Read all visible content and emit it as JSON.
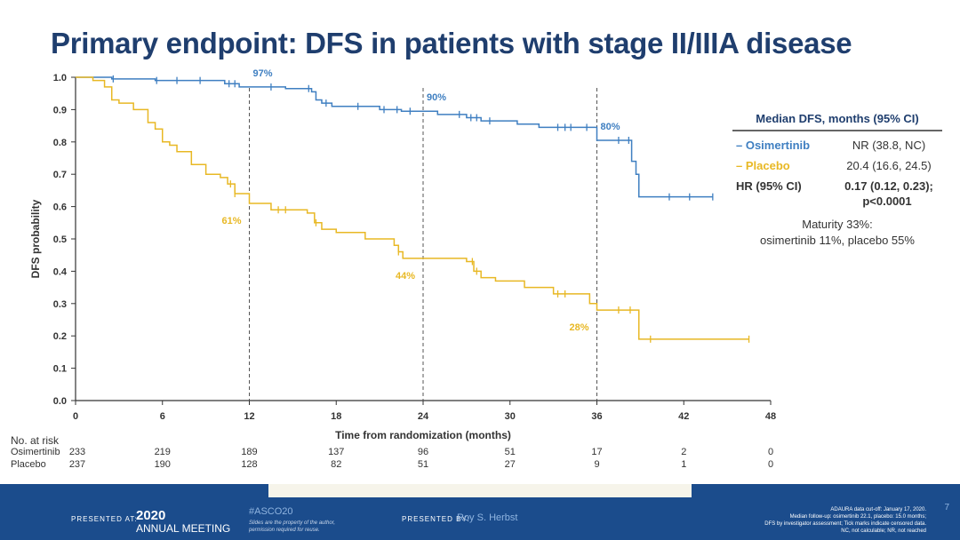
{
  "title": "Primary endpoint: DFS in patients with stage II/IIIA disease",
  "chart_data": {
    "type": "line",
    "subtype": "kaplan-meier",
    "xlabel": "Time from randomization (months)",
    "ylabel": "DFS probability",
    "xlim": [
      0,
      48
    ],
    "ylim": [
      0,
      1.0
    ],
    "xticks": [
      0,
      6,
      12,
      18,
      24,
      30,
      36,
      42,
      48
    ],
    "yticks": [
      "0.0",
      "0.1",
      "0.2",
      "0.3",
      "0.4",
      "0.5",
      "0.6",
      "0.7",
      "0.8",
      "0.9",
      "1.0"
    ],
    "series": [
      {
        "name": "Osimertinib",
        "color": "#3f7fc1",
        "points": [
          [
            0,
            1.0
          ],
          [
            2.5,
            0.995
          ],
          [
            5.5,
            0.99
          ],
          [
            10.3,
            0.98
          ],
          [
            11.3,
            0.97
          ],
          [
            14.5,
            0.965
          ],
          [
            16.3,
            0.955
          ],
          [
            16.6,
            0.93
          ],
          [
            17,
            0.92
          ],
          [
            17.7,
            0.91
          ],
          [
            21,
            0.9
          ],
          [
            22.5,
            0.895
          ],
          [
            25,
            0.885
          ],
          [
            27,
            0.875
          ],
          [
            28,
            0.865
          ],
          [
            30.5,
            0.855
          ],
          [
            32,
            0.845
          ],
          [
            36,
            0.805
          ],
          [
            38.4,
            0.74
          ],
          [
            38.7,
            0.7
          ],
          [
            38.9,
            0.63
          ],
          [
            44,
            0.63
          ]
        ],
        "censored": [
          2.6,
          5.6,
          7,
          8.6,
          10.6,
          11,
          13.5,
          16.1,
          17.3,
          19.5,
          21.3,
          22.2,
          23.1,
          26.5,
          27.3,
          27.7,
          28.6,
          33.3,
          33.8,
          34.2,
          35.3,
          37.5,
          38.2,
          41,
          42.4,
          44
        ],
        "annotations": [
          {
            "month": 12,
            "label": "97%"
          },
          {
            "month": 24,
            "label": "90%"
          },
          {
            "month": 36,
            "label": "80%"
          }
        ]
      },
      {
        "name": "Placebo",
        "color": "#e8b824",
        "points": [
          [
            0,
            1.0
          ],
          [
            1.2,
            0.99
          ],
          [
            2,
            0.97
          ],
          [
            2.5,
            0.93
          ],
          [
            3,
            0.92
          ],
          [
            4,
            0.9
          ],
          [
            5,
            0.86
          ],
          [
            5.5,
            0.84
          ],
          [
            6,
            0.8
          ],
          [
            6.5,
            0.79
          ],
          [
            7,
            0.77
          ],
          [
            8,
            0.73
          ],
          [
            9,
            0.7
          ],
          [
            10,
            0.69
          ],
          [
            10.5,
            0.67
          ],
          [
            11,
            0.64
          ],
          [
            12,
            0.61
          ],
          [
            13.5,
            0.59
          ],
          [
            16,
            0.58
          ],
          [
            16.5,
            0.55
          ],
          [
            17,
            0.53
          ],
          [
            18,
            0.52
          ],
          [
            20,
            0.5
          ],
          [
            22,
            0.48
          ],
          [
            22.3,
            0.46
          ],
          [
            22.6,
            0.44
          ],
          [
            24,
            0.44
          ],
          [
            27,
            0.43
          ],
          [
            27.5,
            0.4
          ],
          [
            28,
            0.38
          ],
          [
            29,
            0.37
          ],
          [
            31,
            0.35
          ],
          [
            33,
            0.33
          ],
          [
            35,
            0.33
          ],
          [
            35.5,
            0.3
          ],
          [
            36,
            0.28
          ],
          [
            38.8,
            0.28
          ],
          [
            38.9,
            0.19
          ],
          [
            46.5,
            0.19
          ]
        ],
        "censored": [
          10.7,
          11,
          14,
          14.5,
          16.6,
          22.3,
          27.4,
          27.7,
          33.3,
          33.8,
          37.5,
          38.3,
          39.7,
          46.5
        ],
        "annotations": [
          {
            "month": 12,
            "label": "61%"
          },
          {
            "month": 24,
            "label": "44%"
          },
          {
            "month": 36,
            "label": "28%"
          }
        ]
      }
    ]
  },
  "table": {
    "header": "Median DFS, months (95% CI)",
    "osi_label": "– Osimertinib",
    "osi_value": "NR (38.8, NC)",
    "pla_label": "– Placebo",
    "pla_value": "20.4 (16.6, 24.5)",
    "hr_label": "HR (95% CI)",
    "hr_value": "0.17 (0.12, 0.23);",
    "p_value": "p<0.0001",
    "maturity1": "Maturity 33%:",
    "maturity2": "osimertinib 11%, placebo 55%"
  },
  "risk": {
    "label": "No. at risk",
    "rows": [
      {
        "name": "Osimertinib",
        "values": [
          "233",
          "219",
          "189",
          "137",
          "96",
          "51",
          "17",
          "2",
          "0"
        ]
      },
      {
        "name": "Placebo",
        "values": [
          "237",
          "190",
          "128",
          "82",
          "51",
          "27",
          "9",
          "1",
          "0"
        ]
      }
    ]
  },
  "footer": {
    "presented_at": "PRESENTED AT:",
    "year": "2020",
    "meeting": "ANNUAL MEETING",
    "hashtag": "#ASCO20",
    "disclaimer1": "Slides are the property of the author,",
    "disclaimer2": "permission required for reuse.",
    "presented_by": "PRESENTED BY:",
    "presenter": "Roy S. Herbst",
    "note1": "ADAURA data cut-off: January 17, 2020.",
    "note2": "Median follow-up: osimertinib 22.1, placebo: 15.0 months;",
    "note3": "DFS by investigator assessment; Tick marks indicate censored data.",
    "note4": "NC, not calculable; NR, not reached",
    "page": "7"
  }
}
